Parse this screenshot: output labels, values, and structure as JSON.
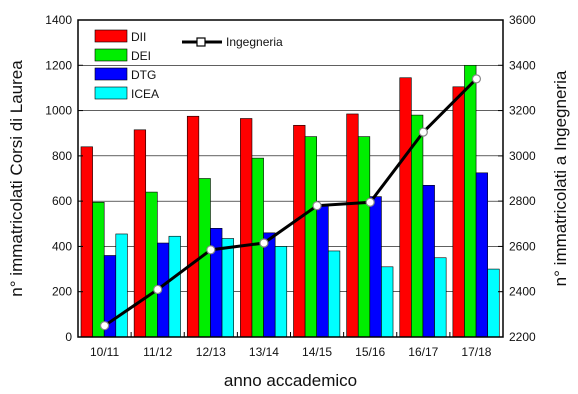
{
  "chart_data": {
    "type": "bar",
    "categories": [
      "10/11",
      "11/12",
      "12/13",
      "13/14",
      "14/15",
      "15/16",
      "16/17",
      "17/18"
    ],
    "series": [
      {
        "name": "DII",
        "color": "#ff0000",
        "values": [
          840,
          915,
          975,
          965,
          935,
          985,
          1145,
          1105
        ]
      },
      {
        "name": "DEI",
        "color": "#00ee00",
        "values": [
          595,
          640,
          700,
          790,
          885,
          885,
          980,
          1200
        ]
      },
      {
        "name": "DTG",
        "color": "#0000ff",
        "values": [
          360,
          415,
          480,
          460,
          580,
          620,
          670,
          725
        ]
      },
      {
        "name": "ICEA",
        "color": "#00ffff",
        "values": [
          455,
          445,
          435,
          400,
          380,
          310,
          350,
          300
        ]
      }
    ],
    "line_series": {
      "name": "Ingegneria",
      "color": "#000000",
      "axis": "right",
      "values": [
        2250,
        2410,
        2585,
        2615,
        2780,
        2795,
        3105,
        3340
      ]
    },
    "xlabel": "anno accademico",
    "ylabel": "n° immatricolati Corsi di Laurea",
    "ylabel_right": "n° immatricolati a Ingegneria",
    "ylim": [
      0,
      1400
    ],
    "ylim_right": [
      2200,
      3600
    ],
    "yticks": [
      "0",
      "200",
      "400",
      "600",
      "800",
      "1000",
      "1200",
      "1400"
    ],
    "yticks_right": [
      "2200",
      "2400",
      "2600",
      "2800",
      "3000",
      "3200",
      "3400",
      "3600"
    ],
    "grid": true,
    "legend_position": "top-left"
  }
}
